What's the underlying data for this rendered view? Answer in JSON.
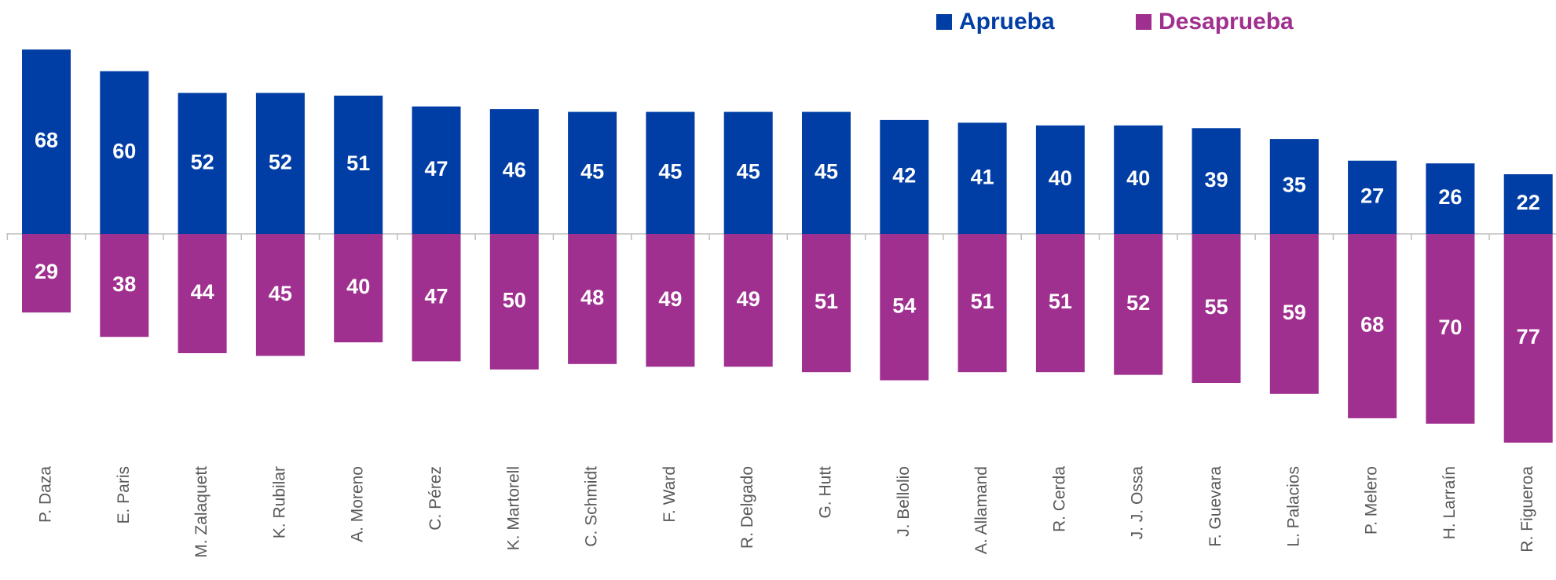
{
  "chart_data": {
    "type": "diverging_bar",
    "categories": [
      "P. Daza",
      "E. Paris",
      "M. Zalaquett",
      "K. Rubilar",
      "A. Moreno",
      "C. Pérez",
      "K. Martorell",
      "C. Schmidt",
      "F. Ward",
      "R. Delgado",
      "G. Hutt",
      "J. Bellolio",
      "A. Allamand",
      "R. Cerda",
      "J. J. Ossa",
      "F. Guevara",
      "L. Palacios",
      "P. Melero",
      "H. Larraín",
      "R. Figueroa"
    ],
    "series": [
      {
        "name": "Aprueba",
        "color": "#003DA5",
        "values": [
          68,
          60,
          52,
          52,
          51,
          47,
          46,
          45,
          45,
          45,
          45,
          42,
          41,
          40,
          40,
          39,
          35,
          27,
          26,
          22
        ]
      },
      {
        "name": "Desaprueba",
        "color": "#A0308F",
        "values": [
          29,
          38,
          44,
          45,
          40,
          47,
          50,
          48,
          49,
          49,
          51,
          54,
          51,
          51,
          52,
          55,
          59,
          68,
          70,
          77
        ]
      }
    ]
  }
}
